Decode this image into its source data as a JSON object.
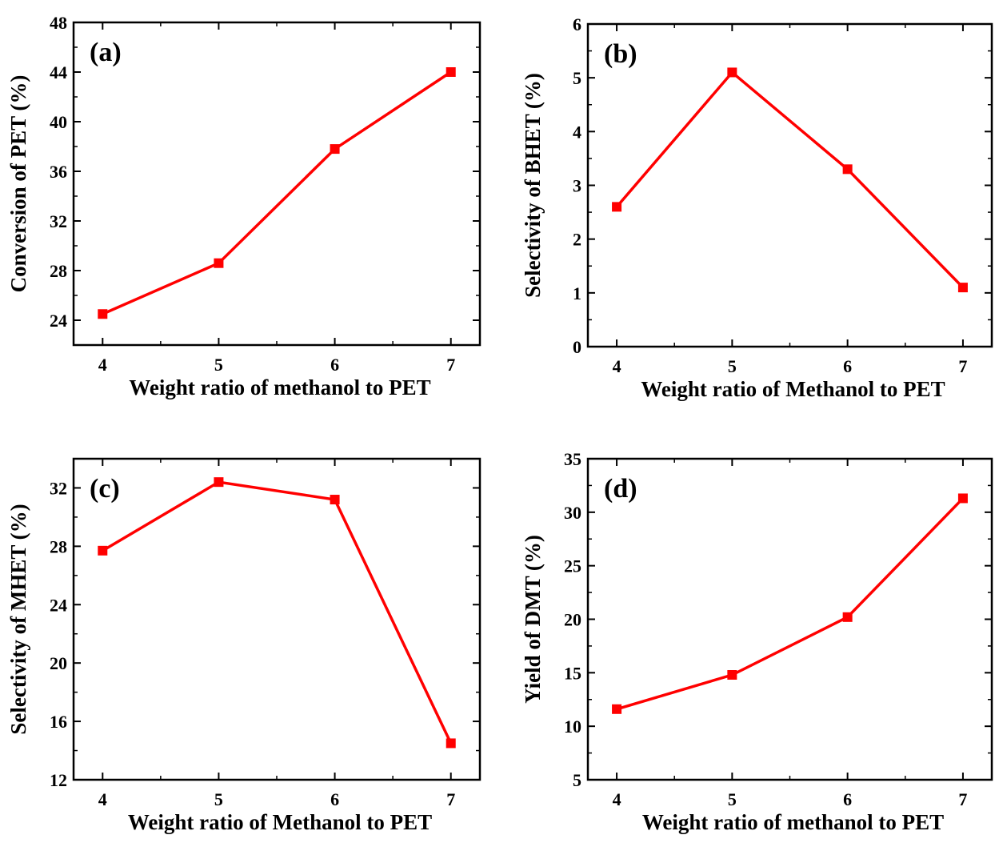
{
  "colors": {
    "series": "#ff0000",
    "axis": "#000000",
    "background": "#ffffff"
  },
  "chart_data": [
    {
      "type": "line",
      "panel_label": "(a)",
      "x": [
        4,
        5,
        6,
        7
      ],
      "series": [
        {
          "values": [
            24.5,
            28.6,
            37.8,
            44.0
          ],
          "marker": "square"
        }
      ],
      "xlabel": "Weight ratio of methanol to PET",
      "ylabel": "Conversion of PET (%)",
      "xlim": [
        3.75,
        7.25
      ],
      "ylim": [
        22,
        48
      ],
      "xticks": [
        4,
        5,
        6,
        7
      ],
      "yticks": [
        24,
        28,
        32,
        36,
        40,
        44,
        48
      ],
      "grid": false
    },
    {
      "type": "line",
      "panel_label": "(b)",
      "x": [
        4,
        5,
        6,
        7
      ],
      "series": [
        {
          "values": [
            2.6,
            5.1,
            3.3,
            1.1
          ],
          "marker": "square"
        }
      ],
      "xlabel": "Weight ratio of Methanol to PET",
      "ylabel": "Selectivity of BHET (%)",
      "xlim": [
        3.75,
        7.25
      ],
      "ylim": [
        0,
        6
      ],
      "xticks": [
        4,
        5,
        6,
        7
      ],
      "yticks": [
        0,
        1,
        2,
        3,
        4,
        5,
        6
      ],
      "grid": false
    },
    {
      "type": "line",
      "panel_label": "(c)",
      "x": [
        4,
        5,
        6,
        7
      ],
      "series": [
        {
          "values": [
            27.7,
            32.4,
            31.2,
            14.5
          ],
          "marker": "square"
        }
      ],
      "xlabel": "Weight ratio of Methanol to PET",
      "ylabel": "Selectivity of MHET (%)",
      "xlim": [
        3.75,
        7.25
      ],
      "ylim": [
        12,
        34
      ],
      "xticks": [
        4,
        5,
        6,
        7
      ],
      "yticks": [
        12,
        16,
        20,
        24,
        28,
        32
      ],
      "grid": false
    },
    {
      "type": "line",
      "panel_label": "(d)",
      "x": [
        4,
        5,
        6,
        7
      ],
      "series": [
        {
          "values": [
            11.6,
            14.8,
            20.2,
            31.3
          ],
          "marker": "square"
        }
      ],
      "xlabel": "Weight ratio of methanol to PET",
      "ylabel": "Yield of DMT (%)",
      "xlim": [
        3.75,
        7.25
      ],
      "ylim": [
        5,
        35
      ],
      "xticks": [
        4,
        5,
        6,
        7
      ],
      "yticks": [
        5,
        10,
        15,
        20,
        25,
        30,
        35
      ],
      "grid": false
    }
  ]
}
